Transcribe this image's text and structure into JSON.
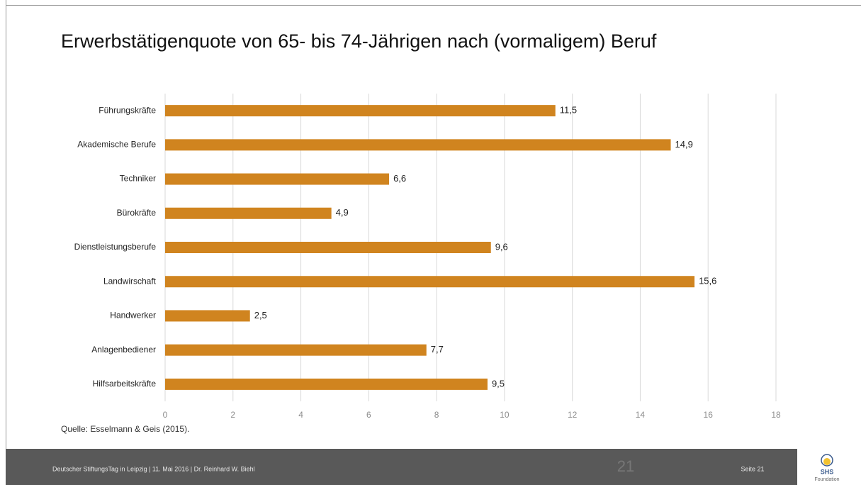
{
  "chart_data": {
    "type": "bar",
    "orientation": "horizontal",
    "title": "Erwerbstätigenquote von 65- bis 74-Jährigen nach (vormaligem) Beruf",
    "categories": [
      "Führungskräfte",
      "Akademische Berufe",
      "Techniker",
      "Bürokräfte",
      "Dienstleistungsberufe",
      "Landwirschaft",
      "Handwerker",
      "Anlagenbediener",
      "Hilfsarbeitskräfte"
    ],
    "values": [
      11.5,
      14.9,
      6.6,
      4.9,
      9.6,
      15.6,
      2.5,
      7.7,
      9.5
    ],
    "value_labels": [
      "11,5",
      "14,9",
      "6,6",
      "4,9",
      "9,6",
      "15,6",
      "2,5",
      "7,7",
      "9,5"
    ],
    "color": "#d0841f",
    "xlim": [
      0,
      18
    ],
    "xticks": [
      0,
      2,
      4,
      6,
      8,
      10,
      12,
      14,
      16,
      18
    ],
    "grid": true,
    "source": "Quelle: Esselmann & Geis (2015)."
  },
  "footer": {
    "text": "Deutscher StiftungsTag in Leipzig  |  11. Mai 2016  |  Dr. Reinhard W. Biehl",
    "slide_number": "21",
    "page": "Seite 21",
    "logo": "SHS",
    "logo_sub": "Foundation"
  }
}
